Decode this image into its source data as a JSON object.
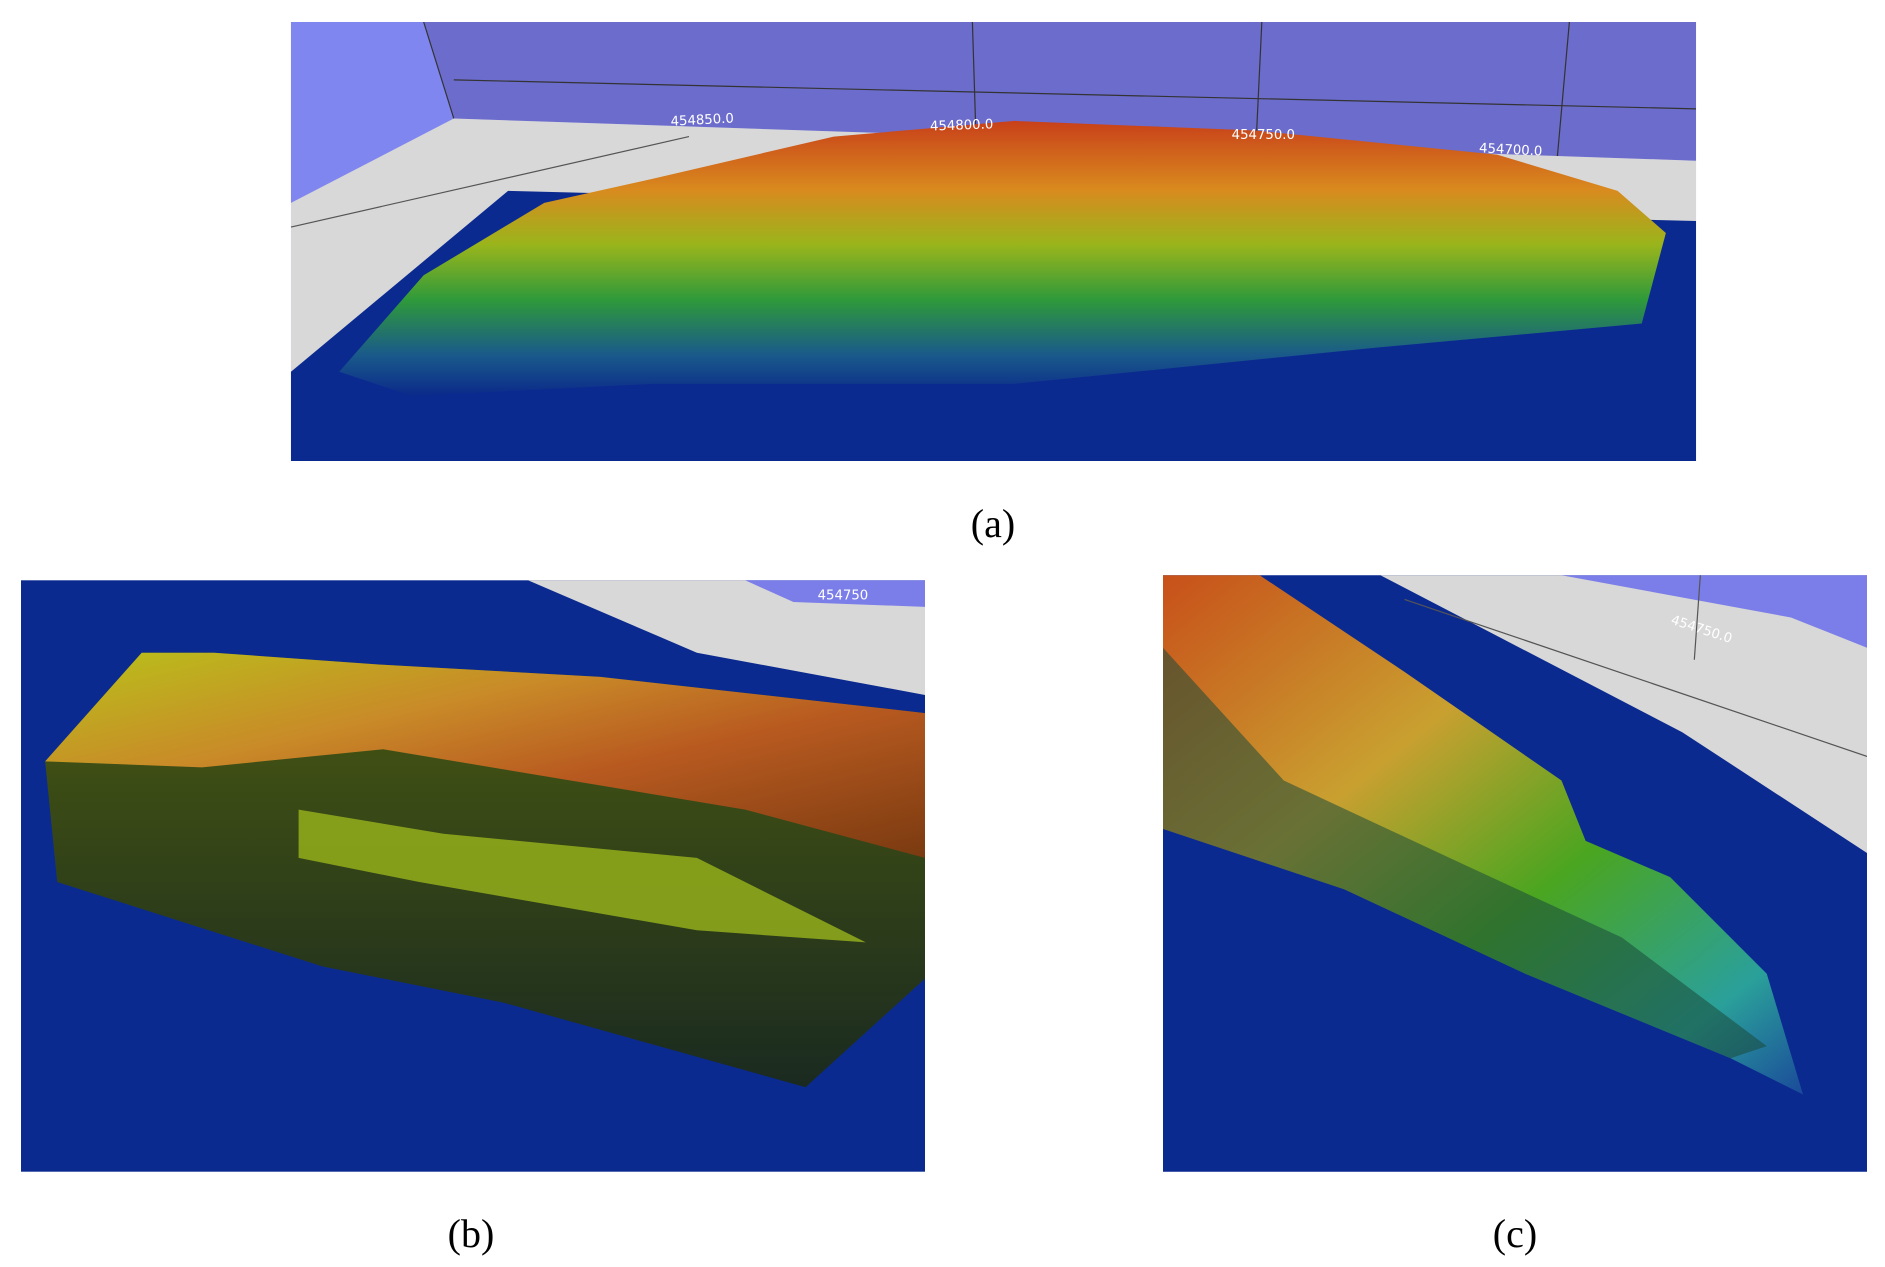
{
  "panels": [
    {
      "caption": "(a)",
      "axis_labels": [
        "454850.0",
        "454800.0",
        "454750.0",
        "454700.0"
      ]
    },
    {
      "caption": "(b)",
      "axis_labels": [
        "454750"
      ]
    },
    {
      "caption": "(c)",
      "axis_labels": [
        "454750.0"
      ]
    }
  ]
}
